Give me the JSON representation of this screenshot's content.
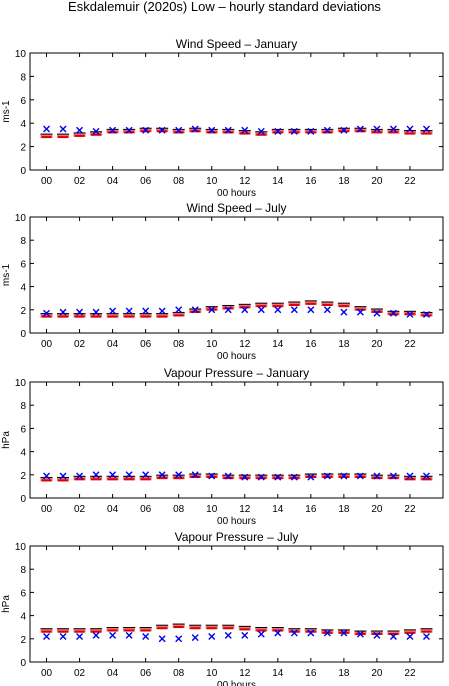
{
  "title": "Eskdalemuir (2020s) Low – hourly standard deviations",
  "colors": {
    "model": "#e00000",
    "model_range": "#000000",
    "observed": "#0000ee",
    "axis": "#000000"
  },
  "chart_data": [
    {
      "type": "scatter",
      "title": "Wind Speed – January",
      "xlabel": "00 hours",
      "ylabel": "ms-1",
      "xlim": [
        -1,
        24
      ],
      "ylim": [
        0,
        10
      ],
      "xticks": [
        "00",
        "02",
        "04",
        "06",
        "08",
        "10",
        "12",
        "14",
        "16",
        "18",
        "20",
        "22"
      ],
      "yticks": [
        0,
        2,
        4,
        6,
        8,
        10
      ],
      "x": [
        0,
        1,
        2,
        3,
        4,
        5,
        6,
        7,
        8,
        9,
        10,
        11,
        12,
        13,
        14,
        15,
        16,
        17,
        18,
        19,
        20,
        21,
        22,
        23
      ],
      "series": [
        {
          "marker": "bar",
          "values": [
            2.9,
            2.9,
            3.0,
            3.1,
            3.3,
            3.3,
            3.4,
            3.4,
            3.3,
            3.4,
            3.3,
            3.3,
            3.2,
            3.1,
            3.3,
            3.3,
            3.3,
            3.3,
            3.4,
            3.4,
            3.3,
            3.3,
            3.2,
            3.2
          ]
        },
        {
          "marker": "x",
          "values": [
            3.5,
            3.5,
            3.4,
            3.3,
            3.4,
            3.4,
            3.4,
            3.4,
            3.4,
            3.5,
            3.4,
            3.4,
            3.4,
            3.3,
            3.3,
            3.3,
            3.3,
            3.4,
            3.4,
            3.5,
            3.5,
            3.5,
            3.5,
            3.5
          ]
        }
      ]
    },
    {
      "type": "scatter",
      "title": "Wind Speed – July",
      "xlabel": "00 hours",
      "ylabel": "ms-1",
      "xlim": [
        -1,
        24
      ],
      "ylim": [
        0,
        10
      ],
      "xticks": [
        "00",
        "02",
        "04",
        "06",
        "08",
        "10",
        "12",
        "14",
        "16",
        "18",
        "20",
        "22"
      ],
      "yticks": [
        0,
        2,
        4,
        6,
        8,
        10
      ],
      "x": [
        0,
        1,
        2,
        3,
        4,
        5,
        6,
        7,
        8,
        9,
        10,
        11,
        12,
        13,
        14,
        15,
        16,
        17,
        18,
        19,
        20,
        21,
        22,
        23
      ],
      "series": [
        {
          "marker": "bar",
          "values": [
            1.5,
            1.5,
            1.5,
            1.5,
            1.5,
            1.5,
            1.5,
            1.5,
            1.6,
            1.9,
            2.1,
            2.2,
            2.3,
            2.4,
            2.4,
            2.5,
            2.6,
            2.5,
            2.4,
            2.1,
            1.9,
            1.7,
            1.7,
            1.6
          ]
        },
        {
          "marker": "x",
          "values": [
            1.7,
            1.8,
            1.8,
            1.8,
            1.9,
            1.9,
            1.9,
            1.9,
            2.0,
            2.0,
            2.0,
            2.0,
            2.0,
            2.0,
            2.0,
            2.0,
            2.0,
            2.0,
            1.8,
            1.8,
            1.7,
            1.7,
            1.6,
            1.6
          ]
        }
      ]
    },
    {
      "type": "scatter",
      "title": "Vapour Pressure – January",
      "xlabel": "00 hours",
      "ylabel": "hPa",
      "xlim": [
        -1,
        24
      ],
      "ylim": [
        0,
        10
      ],
      "xticks": [
        "00",
        "02",
        "04",
        "06",
        "08",
        "10",
        "12",
        "14",
        "16",
        "18",
        "20",
        "22"
      ],
      "yticks": [
        0,
        2,
        4,
        6,
        8,
        10
      ],
      "x": [
        0,
        1,
        2,
        3,
        4,
        5,
        6,
        7,
        8,
        9,
        10,
        11,
        12,
        13,
        14,
        15,
        16,
        17,
        18,
        19,
        20,
        21,
        22,
        23
      ],
      "series": [
        {
          "marker": "bar",
          "values": [
            1.6,
            1.6,
            1.7,
            1.7,
            1.7,
            1.7,
            1.7,
            1.8,
            1.8,
            1.9,
            1.9,
            1.8,
            1.8,
            1.8,
            1.8,
            1.8,
            1.9,
            1.9,
            1.9,
            1.9,
            1.8,
            1.8,
            1.7,
            1.7
          ]
        },
        {
          "marker": "x",
          "values": [
            1.9,
            1.9,
            1.9,
            2.0,
            2.0,
            2.0,
            2.0,
            2.0,
            2.0,
            2.0,
            1.9,
            1.9,
            1.8,
            1.8,
            1.8,
            1.8,
            1.8,
            1.9,
            1.9,
            1.9,
            1.9,
            1.9,
            1.9,
            1.9
          ]
        }
      ]
    },
    {
      "type": "scatter",
      "title": "Vapour Pressure – July",
      "xlabel": "00 hours",
      "ylabel": "hPa",
      "xlim": [
        -1,
        24
      ],
      "ylim": [
        0,
        10
      ],
      "xticks": [
        "00",
        "02",
        "04",
        "06",
        "08",
        "10",
        "12",
        "14",
        "16",
        "18",
        "20",
        "22"
      ],
      "yticks": [
        0,
        2,
        4,
        6,
        8,
        10
      ],
      "x": [
        0,
        1,
        2,
        3,
        4,
        5,
        6,
        7,
        8,
        9,
        10,
        11,
        12,
        13,
        14,
        15,
        16,
        17,
        18,
        19,
        20,
        21,
        22,
        23
      ],
      "series": [
        {
          "marker": "bar",
          "values": [
            2.7,
            2.7,
            2.7,
            2.7,
            2.8,
            2.8,
            2.8,
            3.0,
            3.1,
            3.0,
            3.0,
            3.0,
            2.9,
            2.8,
            2.8,
            2.7,
            2.7,
            2.6,
            2.6,
            2.5,
            2.5,
            2.5,
            2.6,
            2.7
          ]
        },
        {
          "marker": "x",
          "values": [
            2.2,
            2.2,
            2.2,
            2.3,
            2.3,
            2.3,
            2.2,
            2.0,
            2.0,
            2.1,
            2.2,
            2.3,
            2.3,
            2.4,
            2.5,
            2.5,
            2.5,
            2.5,
            2.5,
            2.4,
            2.3,
            2.2,
            2.2,
            2.2
          ]
        }
      ]
    }
  ]
}
